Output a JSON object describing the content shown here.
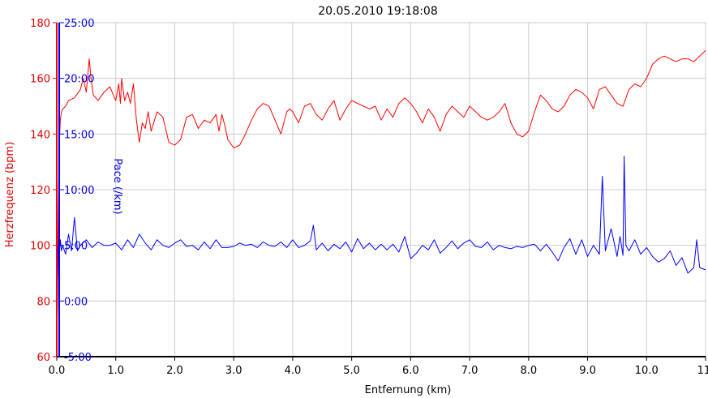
{
  "chart_data": {
    "type": "line",
    "title": "20.05.2010 19:18:08",
    "xlabel": "Entfernung (km)",
    "ylabel_left": "Herzfrequenz (bpm)",
    "ylabel_right": "Pace (/km)",
    "xlim": [
      0,
      11
    ],
    "ylim_left": [
      60,
      180
    ],
    "x_ticks": [
      "0.0",
      "1.0",
      "2.0",
      "3.0",
      "4.0",
      "5.0",
      "6.0",
      "7.0",
      "8.0",
      "9.0",
      "10.0",
      "11."
    ],
    "y_left_ticks": [
      "60",
      "80",
      "100",
      "120",
      "140",
      "160",
      "180"
    ],
    "y_right_ticks": [
      "-5:00",
      "0:00",
      "5:00",
      "10:00",
      "15:00",
      "20:00",
      "25:00"
    ],
    "grid": true,
    "colors": {
      "heart_rate": "#ff0000",
      "pace": "#0000ff",
      "grid": "#cccccc"
    },
    "series": [
      {
        "name": "Herzfrequenz (bpm)",
        "axis": "left",
        "color": "#ff0000",
        "x": [
          0.0,
          0.02,
          0.04,
          0.06,
          0.08,
          0.1,
          0.15,
          0.2,
          0.3,
          0.4,
          0.45,
          0.5,
          0.55,
          0.58,
          0.62,
          0.7,
          0.8,
          0.9,
          1.0,
          1.05,
          1.08,
          1.1,
          1.15,
          1.2,
          1.25,
          1.3,
          1.35,
          1.4,
          1.45,
          1.5,
          1.55,
          1.6,
          1.7,
          1.8,
          1.9,
          2.0,
          2.05,
          2.1,
          2.2,
          2.3,
          2.4,
          2.5,
          2.6,
          2.7,
          2.75,
          2.8,
          2.85,
          2.9,
          3.0,
          3.1,
          3.2,
          3.3,
          3.4,
          3.5,
          3.6,
          3.7,
          3.8,
          3.9,
          3.95,
          4.0,
          4.1,
          4.2,
          4.3,
          4.4,
          4.5,
          4.6,
          4.7,
          4.8,
          4.9,
          5.0,
          5.1,
          5.2,
          5.3,
          5.4,
          5.5,
          5.6,
          5.7,
          5.8,
          5.9,
          6.0,
          6.1,
          6.2,
          6.3,
          6.4,
          6.5,
          6.6,
          6.7,
          6.8,
          6.9,
          7.0,
          7.1,
          7.2,
          7.3,
          7.4,
          7.5,
          7.6,
          7.7,
          7.8,
          7.9,
          8.0,
          8.1,
          8.2,
          8.3,
          8.4,
          8.5,
          8.6,
          8.7,
          8.8,
          8.9,
          9.0,
          9.1,
          9.2,
          9.3,
          9.4,
          9.5,
          9.6,
          9.7,
          9.8,
          9.9,
          10.0,
          10.1,
          10.2,
          10.3,
          10.4,
          10.5,
          10.6,
          10.7,
          10.8,
          10.9,
          11.0
        ],
        "values": [
          62,
          100,
          135,
          145,
          148,
          149,
          150,
          152,
          153,
          156,
          160,
          155,
          167,
          160,
          154,
          152,
          155,
          157,
          152,
          158,
          151,
          160,
          152,
          155,
          151,
          158,
          145,
          137,
          144,
          142,
          148,
          141,
          148,
          146,
          137,
          136,
          137,
          138,
          146,
          147,
          142,
          145,
          144,
          147,
          141,
          147,
          143,
          138,
          135,
          136,
          140,
          145,
          149,
          151,
          150,
          145,
          140,
          148,
          149,
          148,
          144,
          150,
          151,
          147,
          145,
          149,
          152,
          145,
          149,
          152,
          151,
          150,
          149,
          150,
          145,
          149,
          146,
          151,
          153,
          151,
          148,
          144,
          149,
          146,
          141,
          147,
          150,
          148,
          146,
          150,
          148,
          146,
          145,
          146,
          148,
          151,
          144,
          140,
          139,
          141,
          148,
          154,
          152,
          149,
          148,
          150,
          154,
          156,
          155,
          153,
          149,
          156,
          157,
          154,
          151,
          150,
          156,
          158,
          157,
          160,
          165,
          167,
          168,
          167,
          166,
          167,
          167,
          166,
          168,
          170
        ]
      },
      {
        "name": "Pace (/km)",
        "axis": "right",
        "color": "#0000ff",
        "x": [
          0.0,
          0.02,
          0.04,
          0.06,
          0.08,
          0.1,
          0.15,
          0.2,
          0.25,
          0.3,
          0.35,
          0.4,
          0.5,
          0.6,
          0.7,
          0.8,
          0.9,
          1.0,
          1.1,
          1.2,
          1.3,
          1.4,
          1.5,
          1.6,
          1.7,
          1.8,
          1.9,
          2.0,
          2.1,
          2.2,
          2.3,
          2.4,
          2.5,
          2.6,
          2.7,
          2.8,
          2.9,
          3.0,
          3.1,
          3.2,
          3.3,
          3.4,
          3.5,
          3.6,
          3.7,
          3.8,
          3.9,
          4.0,
          4.1,
          4.2,
          4.3,
          4.35,
          4.4,
          4.5,
          4.6,
          4.7,
          4.8,
          4.9,
          5.0,
          5.1,
          5.2,
          5.3,
          5.4,
          5.5,
          5.6,
          5.7,
          5.8,
          5.9,
          6.0,
          6.1,
          6.2,
          6.3,
          6.4,
          6.5,
          6.6,
          6.7,
          6.8,
          6.9,
          7.0,
          7.1,
          7.2,
          7.3,
          7.4,
          7.5,
          7.6,
          7.7,
          7.8,
          7.9,
          8.0,
          8.1,
          8.2,
          8.3,
          8.4,
          8.5,
          8.6,
          8.7,
          8.8,
          8.9,
          9.0,
          9.1,
          9.2,
          9.25,
          9.3,
          9.4,
          9.5,
          9.55,
          9.6,
          9.62,
          9.65,
          9.7,
          9.8,
          9.9,
          10.0,
          10.1,
          10.2,
          10.3,
          10.4,
          10.5,
          10.6,
          10.7,
          10.8,
          10.85,
          10.9,
          11.0
        ],
        "values": [
          -5.0,
          5.0,
          4.0,
          5.5,
          4.5,
          5.0,
          4.2,
          6.0,
          4.5,
          7.5,
          4.5,
          5.0,
          5.5,
          4.8,
          5.3,
          5.0,
          5.0,
          5.2,
          4.6,
          5.5,
          4.8,
          6.0,
          5.2,
          4.6,
          5.5,
          5.0,
          4.8,
          5.2,
          5.5,
          4.9,
          5.0,
          4.6,
          5.3,
          4.7,
          5.5,
          4.8,
          4.8,
          4.9,
          5.2,
          5.0,
          5.1,
          4.8,
          5.3,
          5.0,
          4.9,
          5.3,
          4.8,
          5.5,
          4.8,
          5.0,
          5.4,
          6.8,
          4.6,
          5.2,
          4.5,
          5.1,
          4.7,
          5.3,
          4.4,
          5.6,
          4.7,
          5.2,
          4.6,
          5.1,
          4.6,
          5.1,
          4.4,
          5.8,
          3.8,
          4.3,
          5.0,
          4.6,
          5.5,
          4.3,
          4.8,
          5.4,
          4.7,
          5.2,
          5.5,
          4.9,
          4.8,
          5.3,
          4.6,
          5.0,
          4.8,
          4.7,
          4.9,
          4.8,
          5.0,
          5.1,
          4.5,
          5.1,
          4.4,
          3.6,
          4.8,
          5.6,
          4.2,
          5.5,
          4.0,
          5.0,
          4.2,
          11.2,
          4.5,
          6.5,
          4.0,
          5.8,
          4.1,
          13.0,
          5.0,
          4.5,
          5.5,
          4.2,
          4.8,
          4.0,
          3.5,
          3.8,
          4.5,
          3.2,
          3.9,
          2.5,
          3.0,
          5.5,
          3.0,
          2.8
        ]
      }
    ]
  }
}
